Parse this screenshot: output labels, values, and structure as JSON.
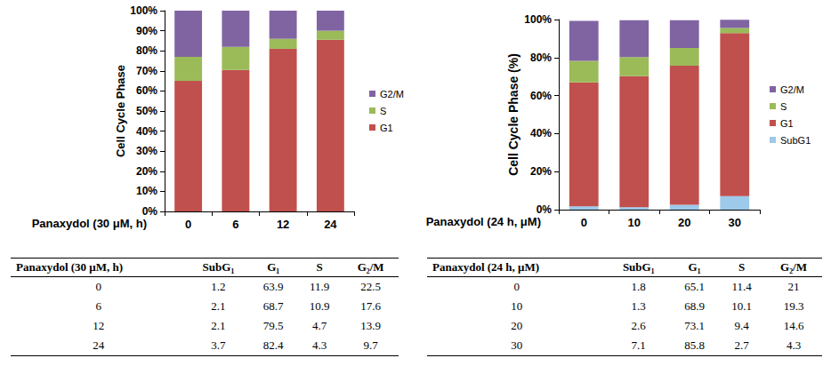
{
  "chart_data": [
    {
      "type": "bar",
      "stacked": true,
      "grid": false,
      "legend": "right",
      "x_label": "Panaxydol (30 μM, h)",
      "y_label": "Cell Cycle Phase",
      "categories": [
        "0",
        "6",
        "12",
        "24"
      ],
      "series": [
        {
          "name": "G1",
          "color": "#c0504d",
          "values": [
            65,
            70.5,
            81,
            85.5
          ]
        },
        {
          "name": "S",
          "color": "#9bbb59",
          "values": [
            12,
            11.5,
            5,
            4.5
          ]
        },
        {
          "name": "G2/M",
          "color": "#8064a2",
          "values": [
            23,
            18,
            14,
            10
          ]
        }
      ],
      "ylim": [
        0,
        100
      ],
      "yticks": [
        {
          "value": 0,
          "label": "0%"
        },
        {
          "value": 10,
          "label": "10%"
        },
        {
          "value": 20,
          "label": "20%"
        },
        {
          "value": 30,
          "label": "30%"
        },
        {
          "value": 40,
          "label": "40%"
        },
        {
          "value": 50,
          "label": "50%"
        },
        {
          "value": 60,
          "label": "60%"
        },
        {
          "value": 70,
          "label": "70%"
        },
        {
          "value": 80,
          "label": "80%"
        },
        {
          "value": 90,
          "label": "90%"
        },
        {
          "value": 100,
          "label": "100%"
        }
      ]
    },
    {
      "type": "bar",
      "stacked": true,
      "grid": false,
      "legend": "right",
      "x_label": "Panaxydol (24 h, μM)",
      "y_label": "Cell Cycle Phase (%)",
      "categories": [
        "0",
        "10",
        "20",
        "30"
      ],
      "series": [
        {
          "name": "SubG1",
          "color": "#9dc9ea",
          "values": [
            1.8,
            1.3,
            2.6,
            7.1
          ]
        },
        {
          "name": "G1",
          "color": "#c0504d",
          "values": [
            65.1,
            68.9,
            73.1,
            85.8
          ]
        },
        {
          "name": "S",
          "color": "#9bbb59",
          "values": [
            11.4,
            10.1,
            9.4,
            2.7
          ]
        },
        {
          "name": "G2/M",
          "color": "#8064a2",
          "values": [
            21,
            19.3,
            14.6,
            4.3
          ]
        }
      ],
      "ylim": [
        0,
        100
      ],
      "yticks": [
        {
          "value": 0,
          "label": "0%"
        },
        {
          "value": 20,
          "label": "20%"
        },
        {
          "value": 40,
          "label": "40%"
        },
        {
          "value": 60,
          "label": "60%"
        },
        {
          "value": 80,
          "label": "80%"
        },
        {
          "value": 100,
          "label": "100%"
        }
      ]
    }
  ],
  "tables": [
    {
      "columns": [
        "Panaxydol (30 μM, h)",
        "SubG₁",
        "G₁",
        "S",
        "G₂/M"
      ],
      "rows": [
        [
          0,
          1.2,
          63.9,
          11.9,
          22.5
        ],
        [
          6,
          2.1,
          68.7,
          10.9,
          17.6
        ],
        [
          12,
          2.1,
          79.5,
          4.7,
          13.9
        ],
        [
          24,
          3.7,
          82.4,
          4.3,
          9.7
        ]
      ]
    },
    {
      "columns": [
        "Panaxydol (24 h, μM)",
        "SubG₁",
        "G₁",
        "S",
        "G₂/M"
      ],
      "rows": [
        [
          0,
          1.8,
          65.1,
          11.4,
          21
        ],
        [
          10,
          1.3,
          68.9,
          10.1,
          19.3
        ],
        [
          20,
          2.6,
          73.1,
          9.4,
          14.6
        ],
        [
          30,
          7.1,
          85.8,
          2.7,
          4.3
        ]
      ]
    }
  ]
}
